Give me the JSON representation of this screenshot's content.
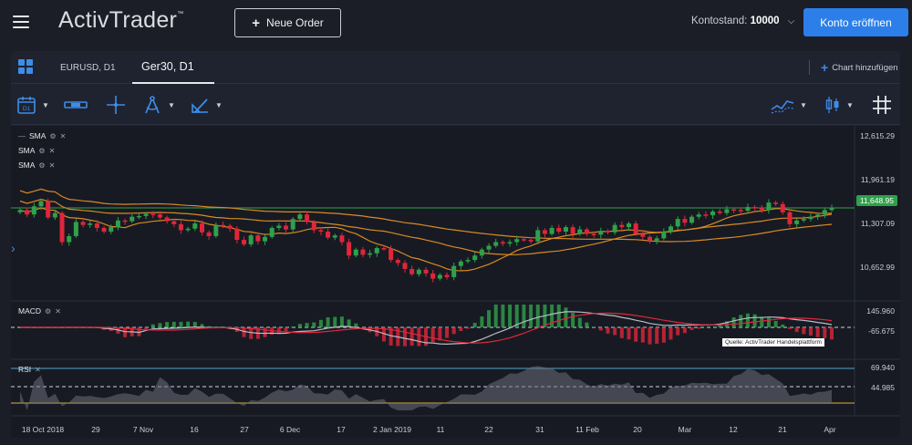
{
  "header": {
    "logo_text": "ActivTrader",
    "logo_tm": "™",
    "new_order_label": "Neue Order",
    "balance_label": "Kontostand:",
    "balance_value": "10000",
    "open_account_label": "Konto eröffnen"
  },
  "tabs": [
    {
      "label": "EURUSD, D1"
    },
    {
      "label": "Ger30, D1"
    }
  ],
  "add_chart_label": "Chart hinzufügen",
  "toolbar": {
    "tools": [
      "calendar-icon",
      "range-icon",
      "crosshair-icon",
      "compass-icon",
      "pencil-ruler-icon",
      "line-chart-icon",
      "candles-icon",
      "grid-icon"
    ],
    "calendar_badge": "D1"
  },
  "indicators": {
    "sma_labels": [
      "SMA",
      "SMA",
      "SMA"
    ],
    "macd_label": "MACD",
    "rsi_label": "RSI"
  },
  "price_axis": {
    "main": [
      "12,615.29",
      "11,961.19",
      "11,307.09",
      "10,652.99"
    ],
    "current": "11,648.95",
    "macd": [
      "145.960",
      "-65.675"
    ],
    "rsi": [
      "69.940",
      "44.985"
    ]
  },
  "source_note": "Quelle: ActivTrader Handelsplattform",
  "date_axis": [
    "18 Oct 2018",
    "29",
    "7 Nov",
    "16",
    "27",
    "6 Dec",
    "17",
    "2 Jan 2019",
    "11",
    "22",
    "31",
    "11 Feb",
    "20",
    "Mar",
    "12",
    "21",
    "Apr"
  ],
  "colors": {
    "accent": "#2c7fe8",
    "up": "#2fa14a",
    "down": "#e0263a",
    "sma": "#d98a22",
    "current_line": "#2fa14a",
    "rsi_upper": "#4fa6c9",
    "rsi_lower": "#d8b43a"
  },
  "chart_data": {
    "type": "candlestick",
    "symbol": "Ger30",
    "timeframe": "D1",
    "ylim": [
      10450,
      12700
    ],
    "closes": [
      11620,
      11560,
      11670,
      11740,
      11520,
      11580,
      11190,
      11270,
      11460,
      11420,
      11440,
      11380,
      11330,
      11390,
      11480,
      11470,
      11530,
      11540,
      11570,
      11560,
      11520,
      11470,
      11430,
      11350,
      11370,
      11440,
      11320,
      11270,
      11420,
      11410,
      11370,
      11220,
      11160,
      11280,
      11200,
      11260,
      11380,
      11410,
      11360,
      11500,
      11560,
      11460,
      11350,
      11330,
      11250,
      11280,
      11190,
      11010,
      11090,
      11020,
      11040,
      11110,
      11100,
      10950,
      10910,
      10830,
      10760,
      10820,
      10770,
      10700,
      10750,
      10720,
      10870,
      10930,
      10950,
      11010,
      11090,
      11140,
      11190,
      11170,
      11190,
      11230,
      11220,
      11200,
      11350,
      11300,
      11380,
      11330,
      11390,
      11300,
      11360,
      11300,
      11290,
      11340,
      11320,
      11420,
      11390,
      11440,
      11300,
      11260,
      11210,
      11240,
      11330,
      11400,
      11500,
      11450,
      11530,
      11560,
      11550,
      11600,
      11580,
      11630,
      11620,
      11610,
      11660,
      11650,
      11620,
      11720,
      11700,
      11590,
      11430,
      11480,
      11500,
      11530,
      11560,
      11620,
      11648
    ]
  }
}
